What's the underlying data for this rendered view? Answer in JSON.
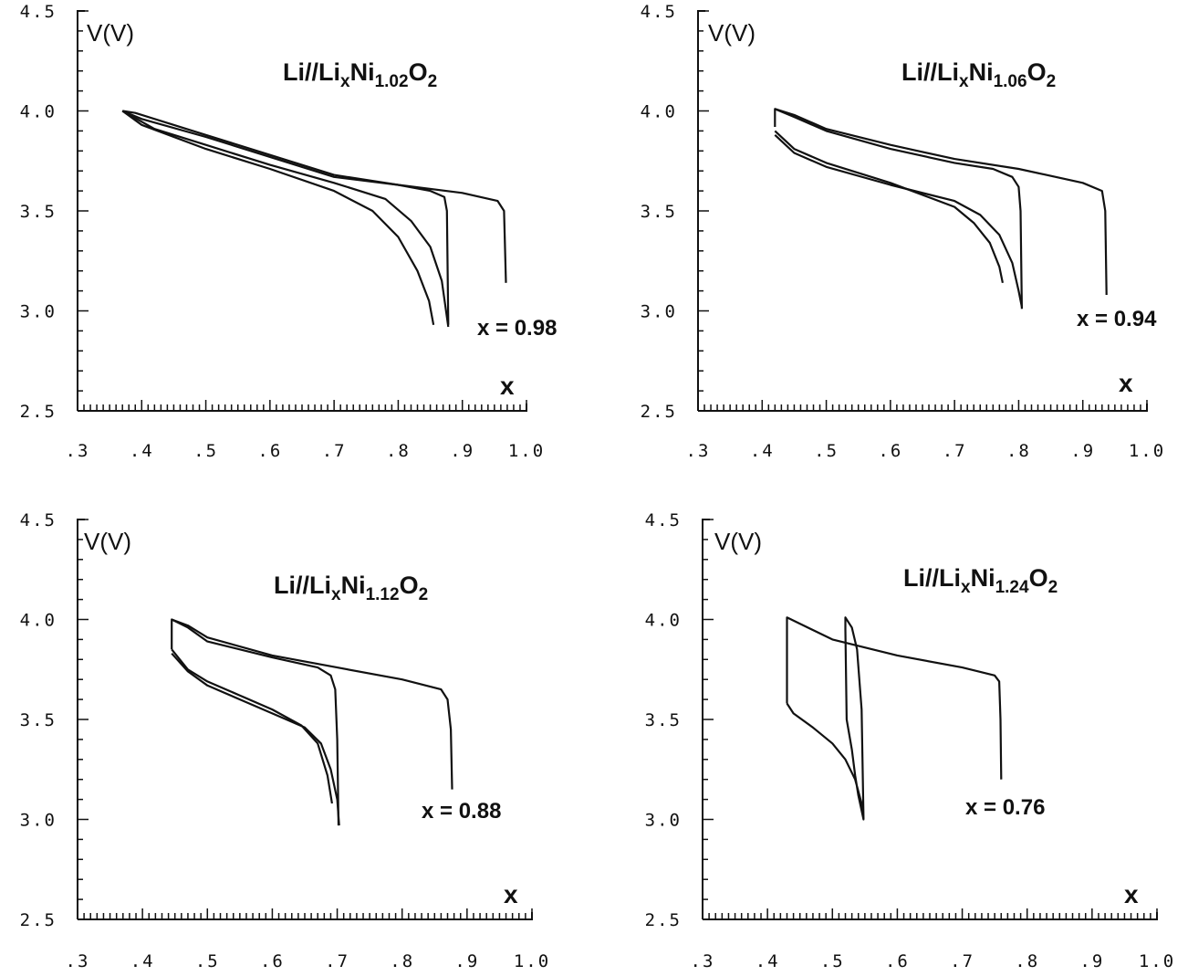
{
  "chart_data": [
    {
      "type": "line",
      "title": {
        "base": "Li//Li",
        "sub1": "x",
        "mid": "Ni",
        "sub2": "1.02",
        "end": "O",
        "sub3": "2"
      },
      "ylabel": "V(V)",
      "xlabel": "x",
      "annotation": "x = 0.98",
      "xlim": [
        0.3,
        1.0
      ],
      "ylim": [
        2.5,
        4.5
      ],
      "x_ticks": [
        ".3",
        ".4",
        ".5",
        ".6",
        ".7",
        ".8",
        ".9",
        "1.0"
      ],
      "y_ticks": [
        "2.5",
        "3.0",
        "3.5",
        "4.0",
        "4.5"
      ],
      "series": [
        {
          "x": [
            0.37,
            0.39,
            0.5,
            0.6,
            0.7,
            0.8,
            0.9,
            0.955,
            0.965,
            0.968
          ],
          "y": [
            4.0,
            3.99,
            3.88,
            3.78,
            3.68,
            3.63,
            3.59,
            3.55,
            3.5,
            3.14
          ]
        },
        {
          "x": [
            0.37,
            0.4,
            0.5,
            0.6,
            0.7,
            0.8,
            0.85,
            0.872,
            0.876,
            0.878
          ],
          "y": [
            4.0,
            3.96,
            3.87,
            3.77,
            3.67,
            3.63,
            3.6,
            3.57,
            3.5,
            2.93
          ]
        },
        {
          "x": [
            0.37,
            0.42,
            0.5,
            0.6,
            0.7,
            0.78,
            0.82,
            0.85,
            0.868,
            0.878
          ],
          "y": [
            4.0,
            3.91,
            3.83,
            3.73,
            3.64,
            3.56,
            3.45,
            3.32,
            3.15,
            2.92
          ]
        },
        {
          "x": [
            0.37,
            0.4,
            0.5,
            0.6,
            0.7,
            0.76,
            0.8,
            0.83,
            0.848,
            0.855
          ],
          "y": [
            4.0,
            3.93,
            3.81,
            3.71,
            3.6,
            3.5,
            3.37,
            3.2,
            3.05,
            2.93
          ]
        }
      ]
    },
    {
      "type": "line",
      "title": {
        "base": "Li//Li",
        "sub1": "x",
        "mid": "Ni",
        "sub2": "1.06",
        "end": "O",
        "sub3": "2"
      },
      "ylabel": "V(V)",
      "xlabel": "x",
      "annotation": "x = 0.94",
      "xlim": [
        0.3,
        1.0
      ],
      "ylim": [
        2.5,
        4.5
      ],
      "x_ticks": [
        ".3",
        ".4",
        ".5",
        ".6",
        ".7",
        ".8",
        ".9",
        "1.0"
      ],
      "y_ticks": [
        "2.5",
        "3.0",
        "3.5",
        "4.0",
        "4.5"
      ],
      "series": [
        {
          "x": [
            0.42,
            0.42,
            0.45,
            0.5,
            0.6,
            0.7,
            0.8,
            0.9,
            0.93,
            0.935,
            0.937
          ],
          "y": [
            3.92,
            4.01,
            3.98,
            3.91,
            3.83,
            3.76,
            3.71,
            3.64,
            3.6,
            3.5,
            3.08
          ]
        },
        {
          "x": [
            0.42,
            0.45,
            0.5,
            0.6,
            0.7,
            0.76,
            0.79,
            0.8,
            0.803,
            0.805
          ],
          "y": [
            4.01,
            3.97,
            3.9,
            3.81,
            3.74,
            3.71,
            3.67,
            3.62,
            3.5,
            3.01
          ]
        },
        {
          "x": [
            0.42,
            0.45,
            0.5,
            0.6,
            0.7,
            0.74,
            0.77,
            0.79,
            0.8,
            0.805
          ],
          "y": [
            3.88,
            3.79,
            3.72,
            3.63,
            3.55,
            3.48,
            3.38,
            3.24,
            3.1,
            3.02
          ]
        },
        {
          "x": [
            0.42,
            0.45,
            0.5,
            0.6,
            0.7,
            0.73,
            0.755,
            0.77,
            0.775
          ],
          "y": [
            3.9,
            3.81,
            3.74,
            3.64,
            3.52,
            3.44,
            3.34,
            3.22,
            3.14
          ]
        }
      ]
    },
    {
      "type": "line",
      "title": {
        "base": "Li//Li",
        "sub1": "x",
        "mid": "Ni",
        "sub2": "1.12",
        "end": "O",
        "sub3": "2"
      },
      "ylabel": "V(V)",
      "xlabel": "x",
      "annotation": "x = 0.88",
      "xlim": [
        0.3,
        1.0
      ],
      "ylim": [
        2.5,
        4.5
      ],
      "x_ticks": [
        ".3",
        ".4",
        ".5",
        ".6",
        ".7",
        ".8",
        ".9",
        "1.0"
      ],
      "y_ticks": [
        "2.5",
        "3.0",
        "3.5",
        "4.0",
        "4.5"
      ],
      "series": [
        {
          "x": [
            0.445,
            0.445,
            0.47,
            0.5,
            0.6,
            0.7,
            0.8,
            0.86,
            0.87,
            0.875,
            0.877
          ],
          "y": [
            3.85,
            4.0,
            3.97,
            3.91,
            3.82,
            3.76,
            3.7,
            3.65,
            3.6,
            3.45,
            3.15
          ]
        },
        {
          "x": [
            0.445,
            0.47,
            0.5,
            0.6,
            0.67,
            0.69,
            0.697,
            0.7,
            0.702
          ],
          "y": [
            4.0,
            3.96,
            3.89,
            3.81,
            3.76,
            3.72,
            3.65,
            3.4,
            2.97
          ]
        },
        {
          "x": [
            0.445,
            0.47,
            0.5,
            0.55,
            0.6,
            0.65,
            0.675,
            0.69,
            0.7,
            0.703
          ],
          "y": [
            3.83,
            3.74,
            3.67,
            3.6,
            3.53,
            3.46,
            3.38,
            3.25,
            3.1,
            2.97
          ]
        },
        {
          "x": [
            0.445,
            0.47,
            0.5,
            0.55,
            0.6,
            0.645,
            0.67,
            0.685,
            0.692
          ],
          "y": [
            3.85,
            3.75,
            3.69,
            3.62,
            3.55,
            3.47,
            3.38,
            3.22,
            3.08
          ]
        }
      ]
    },
    {
      "type": "line",
      "title": {
        "base": "Li//Li",
        "sub1": "x",
        "mid": "Ni",
        "sub2": "1.24",
        "end": "O",
        "sub3": "2"
      },
      "ylabel": "V(V)",
      "xlabel": "x",
      "annotation": "x = 0.76",
      "xlim": [
        0.3,
        1.0
      ],
      "ylim": [
        2.5,
        4.5
      ],
      "x_ticks": [
        ".3",
        ".4",
        ".5",
        ".6",
        ".7",
        ".8",
        ".9",
        "1.0"
      ],
      "y_ticks": [
        "2.5",
        "3.0",
        "3.5",
        "4.0",
        "4.5"
      ],
      "series": [
        {
          "x": [
            0.43,
            0.43,
            0.5,
            0.6,
            0.7,
            0.75,
            0.757,
            0.759,
            0.76
          ],
          "y": [
            3.58,
            4.01,
            3.9,
            3.82,
            3.76,
            3.72,
            3.69,
            3.5,
            3.2
          ]
        },
        {
          "x": [
            0.43,
            0.44,
            0.47,
            0.5,
            0.52,
            0.535,
            0.545,
            0.548,
            0.545,
            0.538,
            0.53,
            0.52,
            0.52,
            0.522,
            0.53,
            0.535,
            0.54,
            0.548
          ],
          "y": [
            3.58,
            3.53,
            3.46,
            3.38,
            3.3,
            3.2,
            3.08,
            3.0,
            3.55,
            3.85,
            3.96,
            4.01,
            3.95,
            3.5,
            3.35,
            3.22,
            3.12,
            3.0
          ]
        }
      ]
    }
  ]
}
